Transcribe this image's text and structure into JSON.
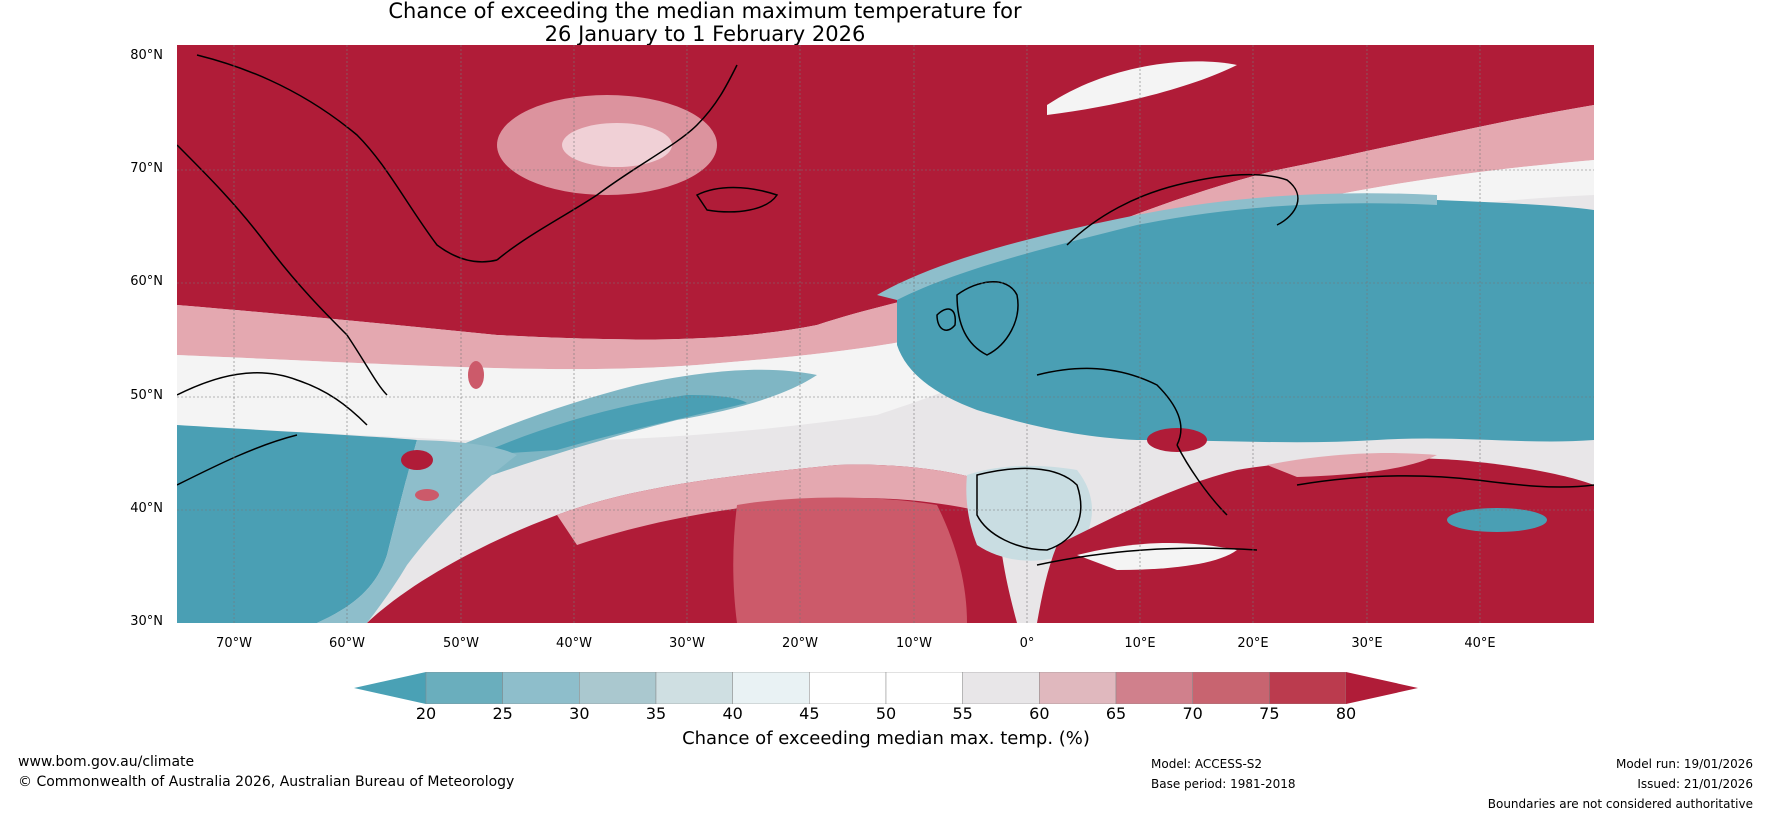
{
  "title": {
    "line1": "Chance of exceeding the median maximum temperature for",
    "line2": "26 January to 1 February 2026"
  },
  "map": {
    "lat_labels": [
      "80°N",
      "70°N",
      "60°N",
      "50°N",
      "40°N",
      "30°N"
    ],
    "lon_labels": [
      "70°W",
      "60°W",
      "50°W",
      "40°W",
      "30°W",
      "20°W",
      "10°W",
      "0°",
      "10°E",
      "20°E",
      "30°E",
      "40°E"
    ],
    "colors": {
      "very_low": "#4a9fb4",
      "low": "#7fb6c4",
      "mid_low": "#c9dde2",
      "neutral": "#f4f4f4",
      "mid_high": "#e4a8b0",
      "high": "#cc5a6a",
      "very_high": "#b01c38"
    }
  },
  "colorbar": {
    "ticks": [
      "20",
      "25",
      "30",
      "35",
      "40",
      "45",
      "50",
      "55",
      "60",
      "65",
      "70",
      "75",
      "80"
    ],
    "colors": [
      "#4aa1b5",
      "#6aaebd",
      "#8ebecb",
      "#aac8cf",
      "#cfdfe2",
      "#e9f2f4",
      "#ffffff",
      "#ffffff",
      "#e8e6e8",
      "#e0b8be",
      "#d0808c",
      "#c86470",
      "#bb3b4e",
      "#b01c38"
    ],
    "label": "Chance of exceeding median max. temp. (%)"
  },
  "footer": {
    "website": "www.bom.gov.au/climate",
    "copyright": "© Commonwealth of Australia 2026, Australian Bureau of Meteorology",
    "model": "Model: ACCESS-S2",
    "base_period": "Base period: 1981-2018",
    "model_run": "Model run: 19/01/2026",
    "issued": "Issued: 21/01/2026",
    "disclaimer": "Boundaries are not considered authoritative"
  }
}
